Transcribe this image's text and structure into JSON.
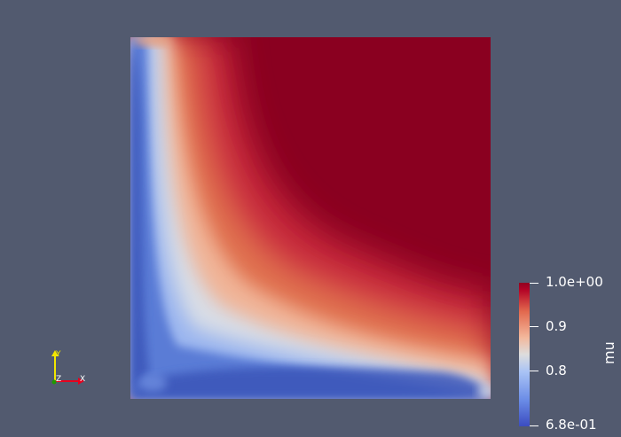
{
  "scalar_bar": {
    "title": "mu",
    "labels": {
      "max": "1.0e+00",
      "mid_high": "0.9",
      "mid_low": "0.8",
      "min": "6.8e-01"
    },
    "range": [
      0.68,
      1.0
    ],
    "colors": {
      "low": "#3b4cc0",
      "mid": "#dddddd",
      "high": "#b40426",
      "top": "#900020"
    }
  },
  "orientation_axes": {
    "x_label": "X",
    "y_label": "Y",
    "z_label": "Z",
    "x_color": "#e8001e",
    "y_color": "#f2e600",
    "z_color": "#1f9900"
  },
  "render": {
    "background": "#525a6f",
    "field_colors": {
      "blue": "#4a66c9",
      "deep_blue": "#3a55b8",
      "light": "#d8dde6",
      "orange": "#e57a55",
      "red": "#c6283a",
      "dark_red": "#8a0020"
    }
  }
}
